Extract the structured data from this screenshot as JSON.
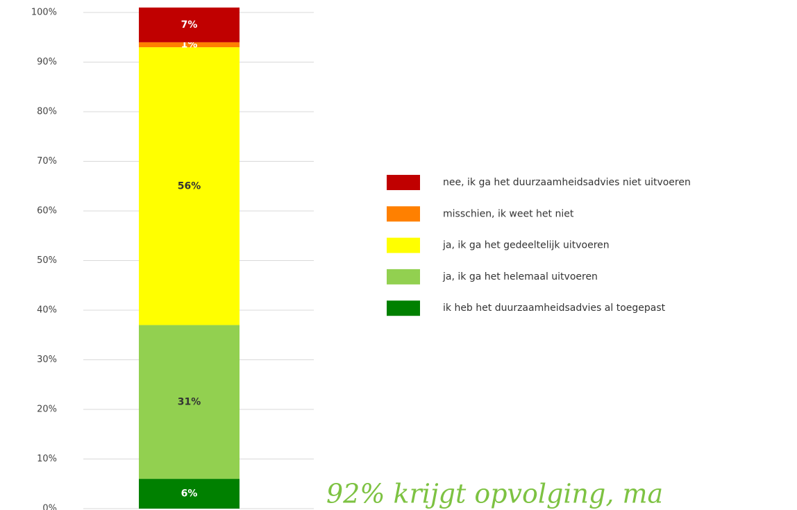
{
  "chart_data": {
    "type": "stacked_bar",
    "categories": [
      null
    ],
    "series": [
      {
        "name": "ik heb het duurzaamheidsadvies al toegepast",
        "color": "#008000",
        "values": [
          6
        ],
        "value_labels": [
          "6%"
        ]
      },
      {
        "name": "ja, ik ga het helemaal uitvoeren",
        "color": "#92d050",
        "values": [
          31
        ],
        "value_labels": [
          "31%"
        ]
      },
      {
        "name": "ja, ik ga het gedeeltelijk uitvoeren",
        "color": "#ffff00",
        "values": [
          56
        ],
        "value_labels": [
          "56%"
        ]
      },
      {
        "name": "misschien, ik weet het niet",
        "color": "#ff8000",
        "values": [
          1
        ],
        "value_labels": [
          "1%"
        ]
      },
      {
        "name": "nee, ik ga het duurzaamheidsadvies niet uitvoeren",
        "color": "#c00000",
        "values": [
          7
        ],
        "value_labels": [
          "7%"
        ]
      }
    ],
    "ylim": [
      0,
      100
    ],
    "yticks": [
      {
        "value": 0,
        "label": "0%"
      },
      {
        "value": 10,
        "label": "10%"
      },
      {
        "value": 20,
        "label": "20%"
      },
      {
        "value": 30,
        "label": "30%"
      },
      {
        "value": 40,
        "label": "40%"
      },
      {
        "value": 50,
        "label": "50%"
      },
      {
        "value": 60,
        "label": "60%"
      },
      {
        "value": 70,
        "label": "70%"
      },
      {
        "value": 80,
        "label": "80%"
      },
      {
        "value": 90,
        "label": "90%"
      },
      {
        "value": 100,
        "label": "100%"
      }
    ],
    "grid": true,
    "legend": "right",
    "annotation": "92% krijgt opvolging, ma"
  }
}
